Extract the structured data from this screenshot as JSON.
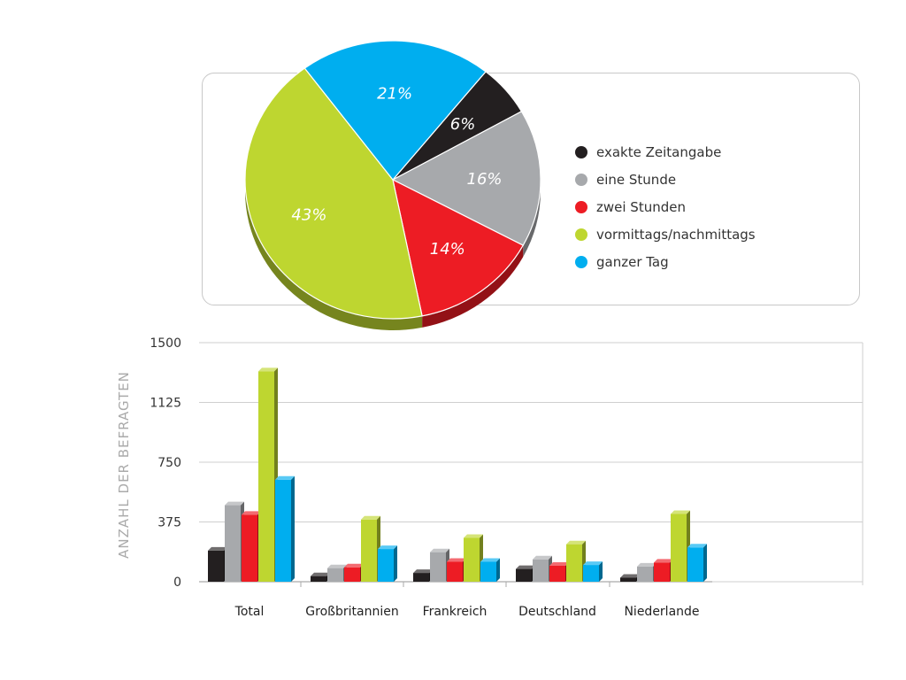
{
  "chart_data": [
    {
      "type": "pie",
      "slices": [
        {
          "label": "exakte Zeitangabe",
          "value": 6,
          "text": "6%",
          "color": "#231f20"
        },
        {
          "label": "eine Stunde",
          "value": 16,
          "text": "16%",
          "color": "#a7a9ac"
        },
        {
          "label": "zwei Stunden",
          "value": 14,
          "text": "14%",
          "color": "#ed1c24"
        },
        {
          "label": "vormittags/nachmittags",
          "value": 43,
          "text": "43%",
          "color": "#bed630"
        },
        {
          "label": "ganzer Tag",
          "value": 21,
          "text": "21%",
          "color": "#00aeef"
        }
      ],
      "legend_position": "right"
    },
    {
      "type": "bar",
      "categories": [
        "Total",
        "Großbritannien",
        "Frankreich",
        "Deutschland",
        "Niederlande"
      ],
      "series": [
        {
          "name": "exakte Zeitangabe",
          "color": "#231f20",
          "values": [
            195,
            35,
            55,
            80,
            25
          ]
        },
        {
          "name": "eine Stunde",
          "color": "#a7a9ac",
          "values": [
            480,
            85,
            185,
            140,
            95
          ]
        },
        {
          "name": "zwei Stunden",
          "color": "#ed1c24",
          "values": [
            420,
            90,
            125,
            100,
            120
          ]
        },
        {
          "name": "vormittags/nachmittags",
          "color": "#bed630",
          "values": [
            1320,
            390,
            275,
            235,
            425
          ]
        },
        {
          "name": "ganzer Tag",
          "color": "#00aeef",
          "values": [
            640,
            205,
            125,
            105,
            215
          ]
        }
      ],
      "ylabel": "ANZAHL DER BEFRAGTEN",
      "yticks": [
        "1500",
        "1125",
        "750",
        "375",
        "0"
      ],
      "ylim": [
        0,
        1500
      ],
      "grid": true
    }
  ]
}
